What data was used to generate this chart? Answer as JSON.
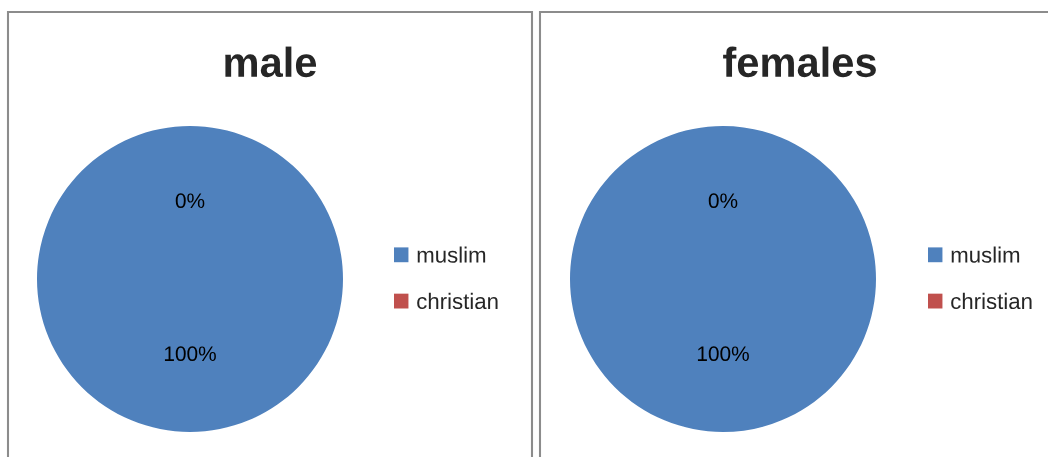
{
  "chart_data": [
    {
      "type": "pie",
      "title": "male",
      "categories": [
        "muslim",
        "christian"
      ],
      "values": [
        100,
        0
      ],
      "colors": [
        "#4f81bd",
        "#c0504d"
      ],
      "value_labels": [
        "100%",
        "0%"
      ],
      "legend": "right"
    },
    {
      "type": "pie",
      "title": "females",
      "categories": [
        "muslim",
        "christian"
      ],
      "values": [
        100,
        0
      ],
      "colors": [
        "#4f81bd",
        "#c0504d"
      ],
      "value_labels": [
        "100%",
        "0%"
      ],
      "legend": "right"
    }
  ]
}
